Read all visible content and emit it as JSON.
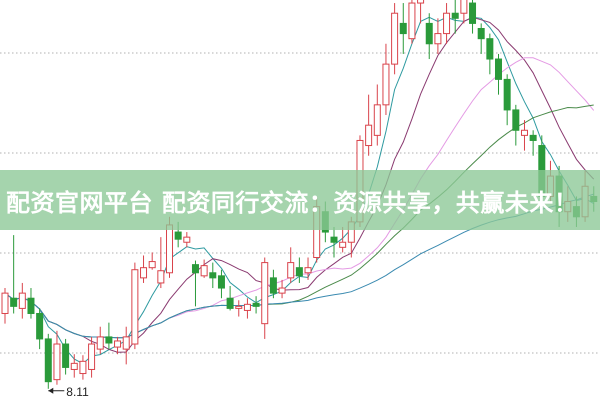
{
  "banner": {
    "text": "配资官网平台 配资同行交流：资源共享，共赢未来！"
  },
  "colors": {
    "up": "#d9434b",
    "down": "#2a9a3a",
    "grid": "#b0b0b0",
    "banner": "#8cc896"
  },
  "chart_data": {
    "type": "candlestick",
    "title": "",
    "grid": true,
    "low_annotation": "8.11",
    "candles_ohlc_order": "open,close,high,low",
    "candles": [
      [
        8.85,
        9.05,
        9.1,
        8.75
      ],
      [
        9.0,
        8.92,
        9.62,
        8.85
      ],
      [
        8.9,
        9.05,
        9.15,
        8.8
      ],
      [
        9.0,
        8.85,
        9.1,
        8.8
      ],
      [
        8.85,
        8.6,
        8.9,
        8.5
      ],
      [
        8.6,
        8.18,
        8.65,
        8.11
      ],
      [
        8.2,
        8.55,
        8.68,
        8.15
      ],
      [
        8.55,
        8.32,
        8.6,
        8.25
      ],
      [
        8.3,
        8.36,
        8.45,
        8.22
      ],
      [
        8.26,
        8.38,
        8.44,
        8.2
      ],
      [
        8.3,
        8.55,
        8.62,
        8.22
      ],
      [
        8.5,
        8.62,
        8.72,
        8.45
      ],
      [
        8.62,
        8.56,
        8.76,
        8.5
      ],
      [
        8.52,
        8.58,
        8.62,
        8.45
      ],
      [
        8.5,
        8.62,
        8.72,
        8.35
      ],
      [
        8.55,
        9.28,
        9.35,
        8.5
      ],
      [
        9.2,
        9.3,
        9.42,
        9.15
      ],
      [
        9.3,
        9.36,
        9.45,
        9.28
      ],
      [
        9.15,
        9.27,
        9.6,
        9.1
      ],
      [
        9.25,
        9.72,
        9.8,
        9.2
      ],
      [
        9.65,
        9.58,
        9.75,
        9.5
      ],
      [
        9.55,
        9.6,
        9.65,
        9.5
      ],
      [
        9.33,
        9.25,
        9.37,
        8.92
      ],
      [
        9.22,
        9.32,
        9.38,
        9.2
      ],
      [
        9.25,
        9.2,
        9.35,
        9.1
      ],
      [
        9.22,
        9.1,
        9.28,
        9.0
      ],
      [
        9.0,
        8.9,
        9.12,
        8.88
      ],
      [
        8.9,
        8.92,
        8.98,
        8.82
      ],
      [
        8.88,
        8.94,
        9.0,
        8.8
      ],
      [
        8.95,
        8.92,
        9.02,
        8.85
      ],
      [
        8.75,
        9.35,
        9.4,
        8.6
      ],
      [
        9.2,
        9.05,
        9.28,
        9.0
      ],
      [
        9.05,
        9.1,
        9.18,
        9.0
      ],
      [
        9.2,
        9.35,
        9.5,
        9.15
      ],
      [
        9.3,
        9.22,
        9.4,
        9.15
      ],
      [
        9.25,
        9.3,
        9.4,
        9.18
      ],
      [
        9.4,
        9.9,
        10.0,
        9.35
      ],
      [
        9.85,
        9.65,
        9.95,
        9.55
      ],
      [
        9.6,
        9.55,
        9.7,
        9.4
      ],
      [
        9.5,
        9.55,
        9.7,
        9.45
      ],
      [
        9.55,
        9.75,
        9.8,
        9.4
      ],
      [
        9.75,
        10.55,
        10.6,
        9.7
      ],
      [
        10.5,
        10.7,
        11.0,
        10.4
      ],
      [
        10.6,
        10.9,
        11.1,
        10.5
      ],
      [
        10.9,
        11.3,
        11.5,
        10.8
      ],
      [
        11.3,
        11.8,
        11.9,
        11.2
      ],
      [
        11.7,
        11.6,
        11.9,
        11.4
      ],
      [
        11.55,
        11.9,
        11.95,
        11.5
      ],
      [
        11.9,
        12.0,
        12.05,
        11.7
      ],
      [
        11.7,
        11.5,
        11.8,
        11.35
      ],
      [
        11.5,
        11.6,
        11.75,
        11.4
      ],
      [
        11.6,
        11.8,
        11.9,
        11.5
      ],
      [
        11.8,
        11.75,
        11.95,
        11.6
      ],
      [
        11.8,
        11.95,
        12.05,
        11.7
      ],
      [
        11.9,
        11.7,
        12.05,
        11.6
      ],
      [
        11.65,
        11.55,
        11.7,
        11.4
      ],
      [
        11.55,
        11.35,
        11.6,
        11.2
      ],
      [
        11.35,
        11.15,
        11.4,
        11.0
      ],
      [
        11.15,
        10.85,
        11.2,
        10.7
      ],
      [
        10.85,
        10.65,
        10.9,
        10.5
      ],
      [
        10.6,
        10.65,
        10.75,
        10.45
      ],
      [
        10.6,
        10.55,
        10.65,
        10.4
      ],
      [
        10.5,
        10.0,
        10.6,
        9.9
      ],
      [
        10.0,
        10.2,
        10.35,
        9.95
      ],
      [
        10.2,
        9.85,
        10.3,
        9.7
      ],
      [
        9.85,
        9.95,
        10.1,
        9.75
      ],
      [
        9.9,
        9.8,
        10.0,
        9.7
      ],
      [
        9.8,
        10.1,
        10.25,
        9.75
      ],
      [
        10.0,
        9.95,
        10.1,
        9.85
      ]
    ],
    "moving_averages": [
      {
        "period": 5,
        "color": "#2e9aa0"
      },
      {
        "period": 10,
        "color": "#8a3a70"
      },
      {
        "period": 20,
        "color": "#e49ae4"
      },
      {
        "period": 30,
        "color": "#4a8a4a"
      },
      {
        "period": 60,
        "color": "#3a8ab0"
      }
    ],
    "ylim": [
      8.0,
      11.93
    ]
  }
}
